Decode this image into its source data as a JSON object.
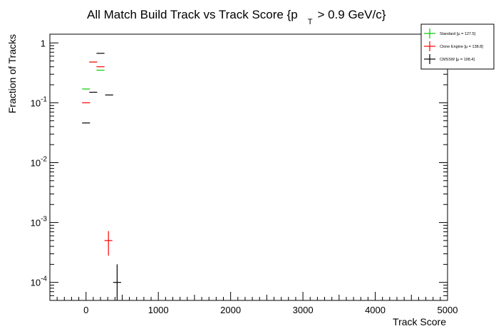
{
  "chart_data": {
    "type": "scatter",
    "title": "All Match Build Track vs Track Score {p",
    "title_sub": "T",
    "title_tail": "> 0.9 GeV/c}",
    "xlabel": "Track Score",
    "ylabel": "Fraction of Tracks",
    "xlim": [
      -500,
      5000
    ],
    "ylim": [
      5e-05,
      1.4
    ],
    "log_y": true,
    "grid": false,
    "legend_position": "top-right",
    "x_ticks": [
      "0",
      "1000",
      "2000",
      "3000",
      "4000",
      "5000"
    ],
    "y_ticks": [
      {
        "base": "10",
        "exp": "-4",
        "value": 0.0001
      },
      {
        "base": "10",
        "exp": "-3",
        "value": 0.001
      },
      {
        "base": "10",
        "exp": "-2",
        "value": 0.01
      },
      {
        "base": "10",
        "exp": "-1",
        "value": 0.1
      },
      {
        "base": "1",
        "exp": "",
        "value": 1
      }
    ],
    "series": [
      {
        "name": "Standard",
        "legend_label": "Standard  [μ = 127.5]",
        "color": "#00cc00",
        "points": [
          {
            "x": 0,
            "y": 0.17,
            "xerr": 55
          },
          {
            "x": 100,
            "y": 0.48,
            "xerr": 55
          },
          {
            "x": 200,
            "y": 0.35,
            "xerr": 55
          }
        ]
      },
      {
        "name": "Clone Engine",
        "legend_label": "Clone Engine  [μ = 138.8]",
        "color": "#ff0000",
        "points": [
          {
            "x": 0,
            "y": 0.1,
            "xerr": 55
          },
          {
            "x": 100,
            "y": 0.48,
            "xerr": 55
          },
          {
            "x": 200,
            "y": 0.4,
            "xerr": 55
          },
          {
            "x": 310,
            "y": 0.0005,
            "xerr": 55,
            "yerr_lo": 0.00028,
            "yerr_hi": 0.00072
          }
        ]
      },
      {
        "name": "CMSSW",
        "legend_label": "CMSSW  [μ = 198.4]",
        "color": "#000000",
        "points": [
          {
            "x": 0,
            "y": 0.046,
            "xerr": 55
          },
          {
            "x": 100,
            "y": 0.15,
            "xerr": 55
          },
          {
            "x": 200,
            "y": 0.67,
            "xerr": 55
          },
          {
            "x": 320,
            "y": 0.135,
            "xerr": 55
          },
          {
            "x": 430,
            "y": 0.0001,
            "xerr": 55,
            "yerr_lo": 5e-05,
            "yerr_hi": 0.0002
          }
        ]
      }
    ]
  }
}
